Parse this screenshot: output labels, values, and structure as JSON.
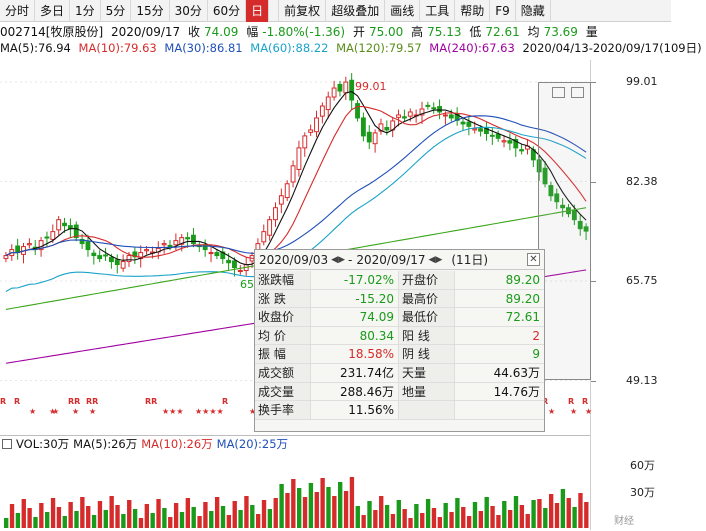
{
  "toolbar": {
    "items": [
      "分时",
      "多日",
      "1分",
      "5分",
      "15分",
      "30分",
      "60分",
      "日",
      "前复权",
      "超级叠加",
      "画线",
      "工具",
      "帮助",
      "F9",
      "隐藏"
    ],
    "active": "日"
  },
  "quote": {
    "code_name": "002714[牧原股份]",
    "date": "2020/09/17",
    "close_label": "收",
    "close": "74.09",
    "change_label": "幅",
    "change": "-1.80%(-1.36)",
    "open_label": "开",
    "open": "75.00",
    "high_label": "高",
    "high": "75.13",
    "low_label": "低",
    "low": "72.61",
    "avg_label": "均",
    "avg": "73.69",
    "vol_label": "量"
  },
  "ma": {
    "ma5": "MA(5):76.94",
    "ma10": "MA(10):79.63",
    "ma30": "MA(30):86.81",
    "ma60": "MA(60):88.22",
    "ma120": "MA(120):79.57",
    "ma240": "MA(240):67.63",
    "range": "2020/04/13-2020/09/17(109日)"
  },
  "price_axis": [
    "99.01",
    "82.38",
    "65.75",
    "49.13"
  ],
  "peak_label": "99.01",
  "low_label": "65",
  "popup": {
    "from": "2020/09/03",
    "sep": "-",
    "to": "2020/09/17",
    "days": "(11日)",
    "rows": [
      {
        "l1": "涨跌幅",
        "v1": "-17.02%",
        "c1": "green",
        "l2": "开盘价",
        "v2": "89.20",
        "c2": "green"
      },
      {
        "l1": "涨  跌",
        "v1": "-15.20",
        "c1": "green",
        "l2": "最高价",
        "v2": "89.20",
        "c2": "green"
      },
      {
        "l1": "收盘价",
        "v1": "74.09",
        "c1": "green",
        "l2": "最低价",
        "v2": "72.61",
        "c2": "green"
      },
      {
        "l1": "均  价",
        "v1": "80.34",
        "c1": "green",
        "l2": "阳  线",
        "v2": "2",
        "c2": "red"
      },
      {
        "l1": "振  幅",
        "v1": "18.58%",
        "c1": "red",
        "l2": "阴  线",
        "v2": "9",
        "c2": "green"
      },
      {
        "l1": "成交额",
        "v1": "231.74亿",
        "c1": "black",
        "l2": "天量",
        "v2": "44.63万",
        "c2": "black"
      },
      {
        "l1": "成交量",
        "v1": "288.46万",
        "c1": "black",
        "l2": "地量",
        "v2": "14.76万",
        "c2": "black"
      },
      {
        "l1": "换手率",
        "v1": "11.56%",
        "c1": "black",
        "l2": "",
        "v2": "",
        "c2": "black"
      }
    ]
  },
  "volume": {
    "label": "VOL:30万",
    "ma5": "MA(5):26万",
    "ma10": "MA(10):26万",
    "ma20": "MA(20):25万",
    "axis": [
      "60万",
      "30万"
    ]
  },
  "signals": "R R ★ ★ RR RR ★ ★ ★ ★ RR ★★★ ★★★★ R ★ R R ★ ★ ★ R R ★",
  "watermark": "财经",
  "colors": {
    "up": "#d62b2b",
    "down": "#1a9a1a",
    "ma5": "#111111",
    "ma10": "#d62b2b",
    "ma30": "#1f4fb8",
    "ma60": "#1aa3c9",
    "ma120": "#3aa61a",
    "ma240": "#a000a0"
  }
}
